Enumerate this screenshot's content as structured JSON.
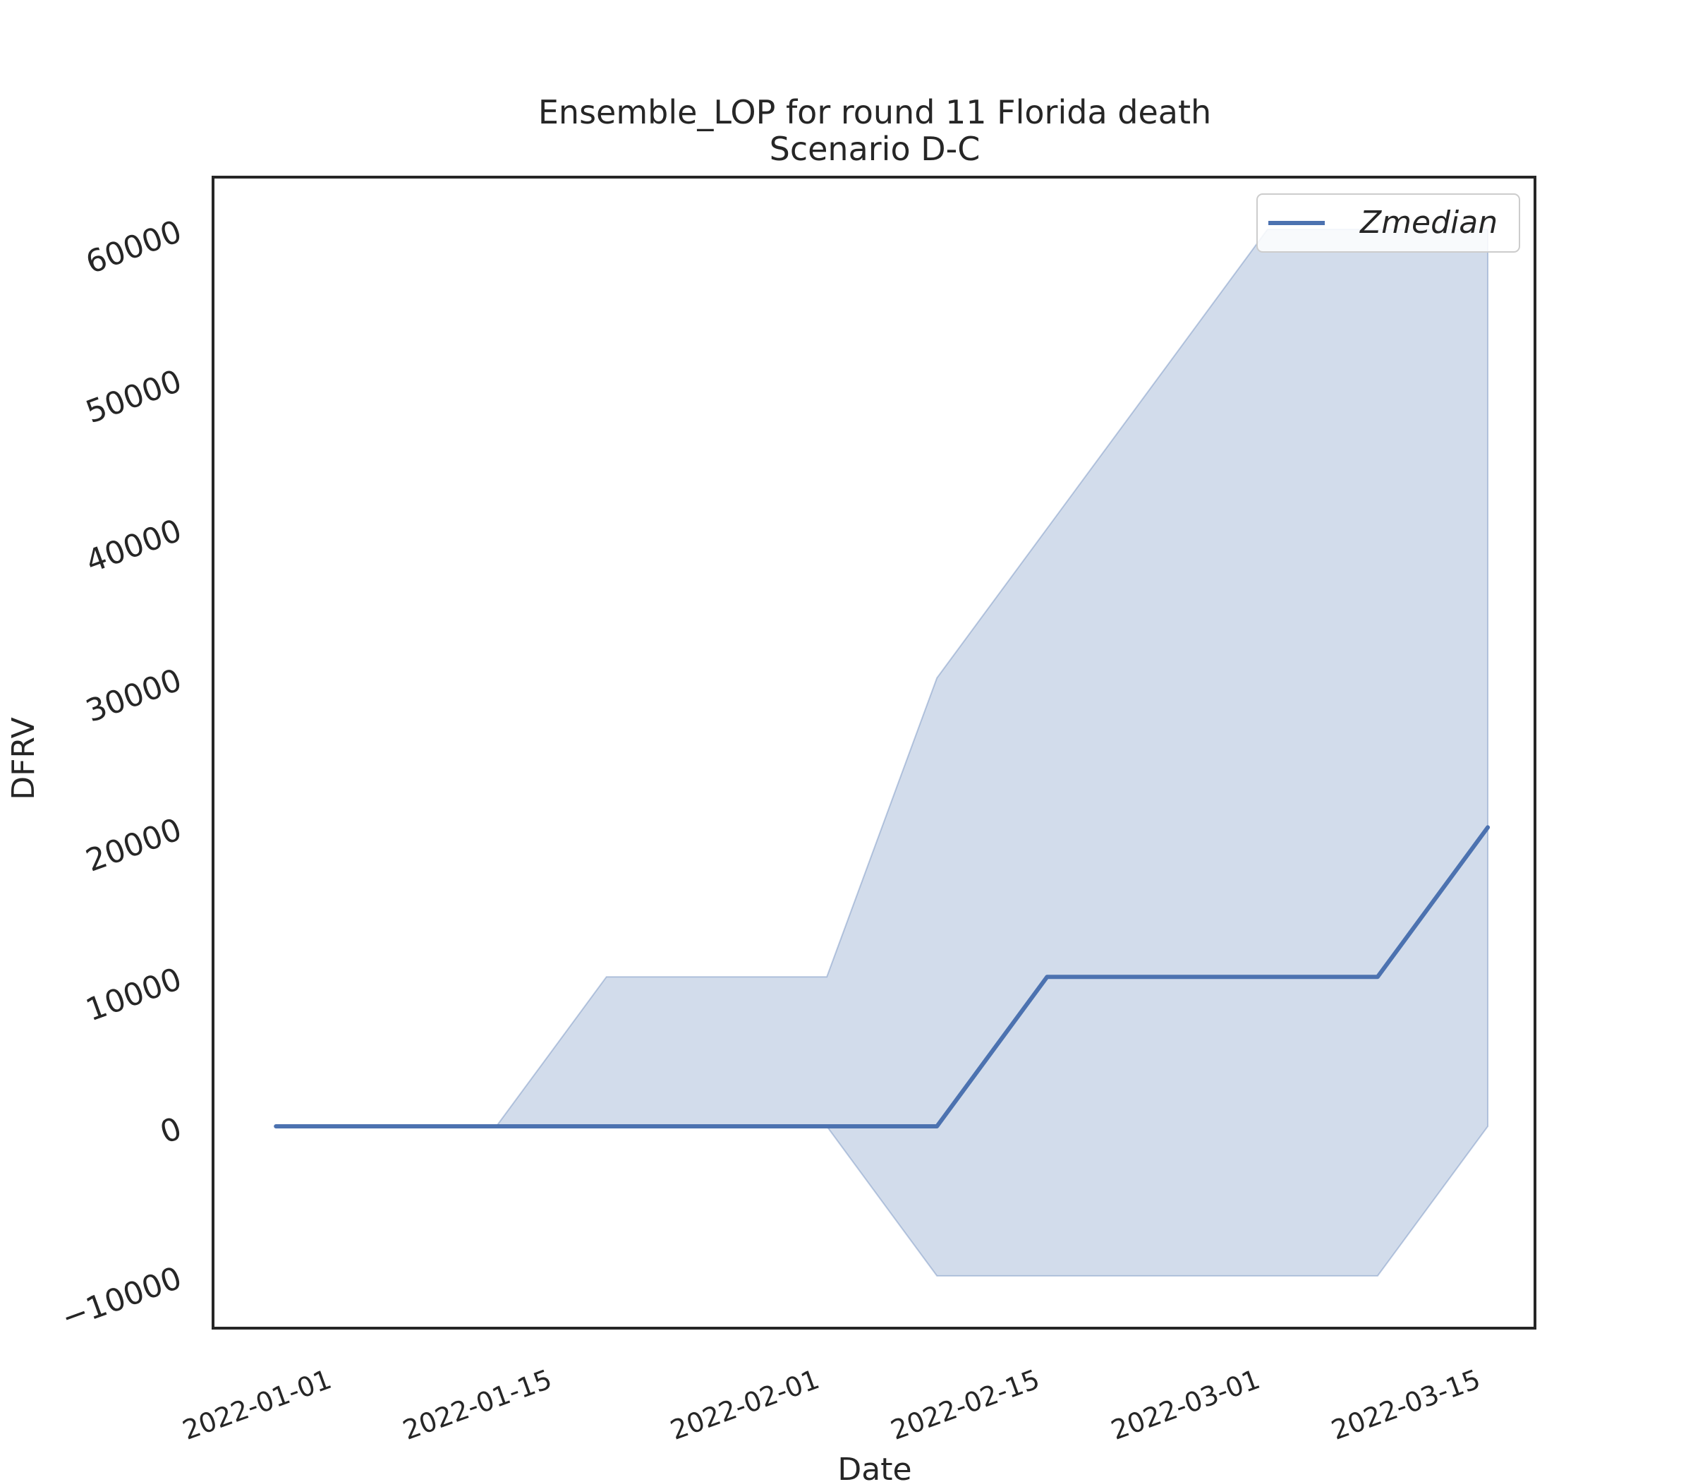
{
  "chart_data": {
    "type": "line",
    "title": "Ensemble_LOP for round 11 Florida death",
    "subtitle": "Scenario D-C",
    "xlabel": "Date",
    "ylabel": "DFRV",
    "x_tick_labels": [
      "2022-01-01",
      "2022-01-15",
      "2022-02-01",
      "2022-02-15",
      "2022-03-01",
      "2022-03-15"
    ],
    "y_tick_labels": [
      "−10000",
      "0",
      "10000",
      "20000",
      "30000",
      "40000",
      "50000",
      "60000"
    ],
    "y_ticks": [
      -10000,
      0,
      10000,
      20000,
      30000,
      40000,
      50000,
      60000
    ],
    "ylim": [
      -13500,
      63500
    ],
    "xlim": [
      "2021-12-24",
      "2022-03-18"
    ],
    "grid": false,
    "legend_position": "top-right",
    "x": [
      "2021-12-28",
      "2022-01-04",
      "2022-01-11",
      "2022-01-18",
      "2022-01-25",
      "2022-02-01",
      "2022-02-08",
      "2022-02-15",
      "2022-02-22",
      "2022-03-01",
      "2022-03-08",
      "2022-03-15"
    ],
    "series": [
      {
        "name": "Zmedian",
        "values": [
          0,
          0,
          0,
          0,
          0,
          0,
          0,
          10000,
          10000,
          10000,
          10000,
          20000
        ],
        "color": "#4c72b0"
      }
    ],
    "band": {
      "lower": [
        0,
        0,
        0,
        0,
        0,
        0,
        -10000,
        -10000,
        -10000,
        -10000,
        -10000,
        0
      ],
      "upper": [
        0,
        0,
        0,
        10000,
        10000,
        10000,
        30000,
        40000,
        50000,
        60000,
        60000,
        60000
      ],
      "color": "#4c72b0",
      "opacity": 0.25
    }
  }
}
